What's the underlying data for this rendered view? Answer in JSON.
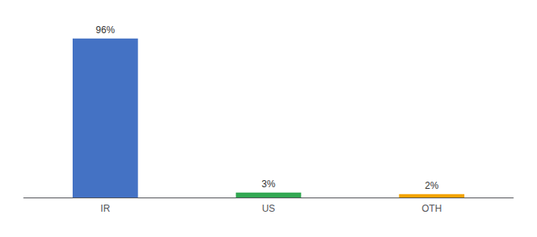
{
  "chart_data": {
    "type": "bar",
    "categories": [
      "IR",
      "US",
      "OTH"
    ],
    "values": [
      96,
      3,
      2
    ],
    "value_labels": [
      "96%",
      "3%",
      "2%"
    ],
    "data_labels": true,
    "colors": [
      "#4472c4",
      "#33a853",
      "#f4a300"
    ],
    "ylim": [
      0,
      105
    ],
    "grid": false,
    "tick_labels": "x"
  }
}
